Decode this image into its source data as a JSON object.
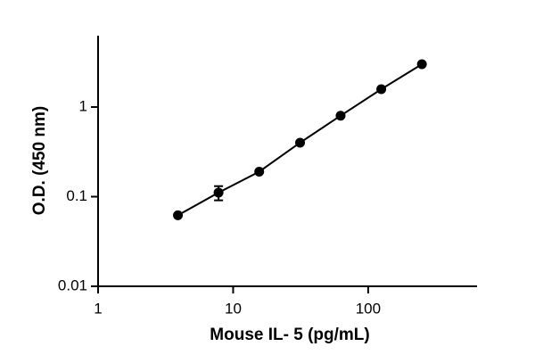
{
  "chart_data": {
    "type": "scatter",
    "xlabel": "Mouse IL- 5 (pg/mL)",
    "ylabel": "O.D. (450 nm)",
    "x": [
      3.9,
      7.8,
      15.6,
      31.3,
      62.5,
      125,
      250
    ],
    "series": [
      {
        "color": "#000000",
        "values": [
          0.062,
          0.111,
          0.19,
          0.4,
          0.8,
          1.58,
          3.0
        ],
        "errors": [
          null,
          0.02,
          null,
          null,
          null,
          null,
          null
        ]
      }
    ],
    "xscale": "log",
    "yscale": "log",
    "xlim": [
      1,
      640
    ],
    "ylim": [
      0.01,
      6.25
    ],
    "xticks": [
      1,
      10,
      100
    ],
    "yticks": [
      0.01,
      0.1,
      1
    ]
  }
}
